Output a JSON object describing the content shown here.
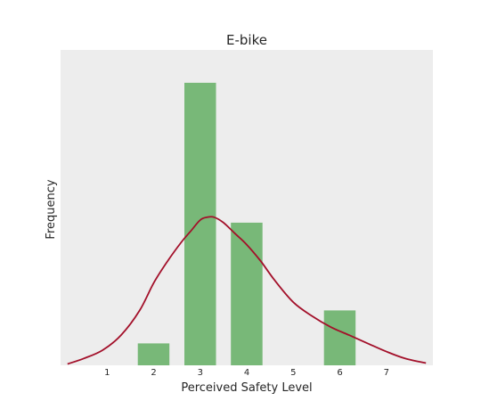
{
  "chart_data": {
    "type": "bar",
    "title": "E-bike",
    "xlabel": "Perceived Safety Level",
    "ylabel": "Frequency",
    "x_ticks": [
      1,
      2,
      3,
      4,
      5,
      6,
      7
    ],
    "xlim": [
      0,
      8
    ],
    "ylim": [
      0,
      11.5
    ],
    "grid": false,
    "bars": [
      {
        "x": 2,
        "value": 0.8
      },
      {
        "x": 3,
        "value": 10.3
      },
      {
        "x": 4,
        "value": 5.2
      },
      {
        "x": 6,
        "value": 2.0
      }
    ],
    "density_curve": {
      "x": [
        0.15,
        0.5,
        0.9,
        1.3,
        1.7,
        2.0,
        2.3,
        2.6,
        2.8,
        3.0,
        3.15,
        3.3,
        3.5,
        3.75,
        4.0,
        4.3,
        4.6,
        5.0,
        5.4,
        5.8,
        6.2,
        6.6,
        7.0,
        7.4,
        7.85
      ],
      "y": [
        0.05,
        0.25,
        0.55,
        1.1,
        2.0,
        3.0,
        3.8,
        4.5,
        4.9,
        5.3,
        5.4,
        5.4,
        5.2,
        4.8,
        4.4,
        3.8,
        3.1,
        2.3,
        1.8,
        1.4,
        1.1,
        0.8,
        0.5,
        0.25,
        0.08
      ]
    },
    "colors": {
      "bar": "#78b878",
      "curve": "#a3102a",
      "plot_background": "#ededed"
    }
  }
}
